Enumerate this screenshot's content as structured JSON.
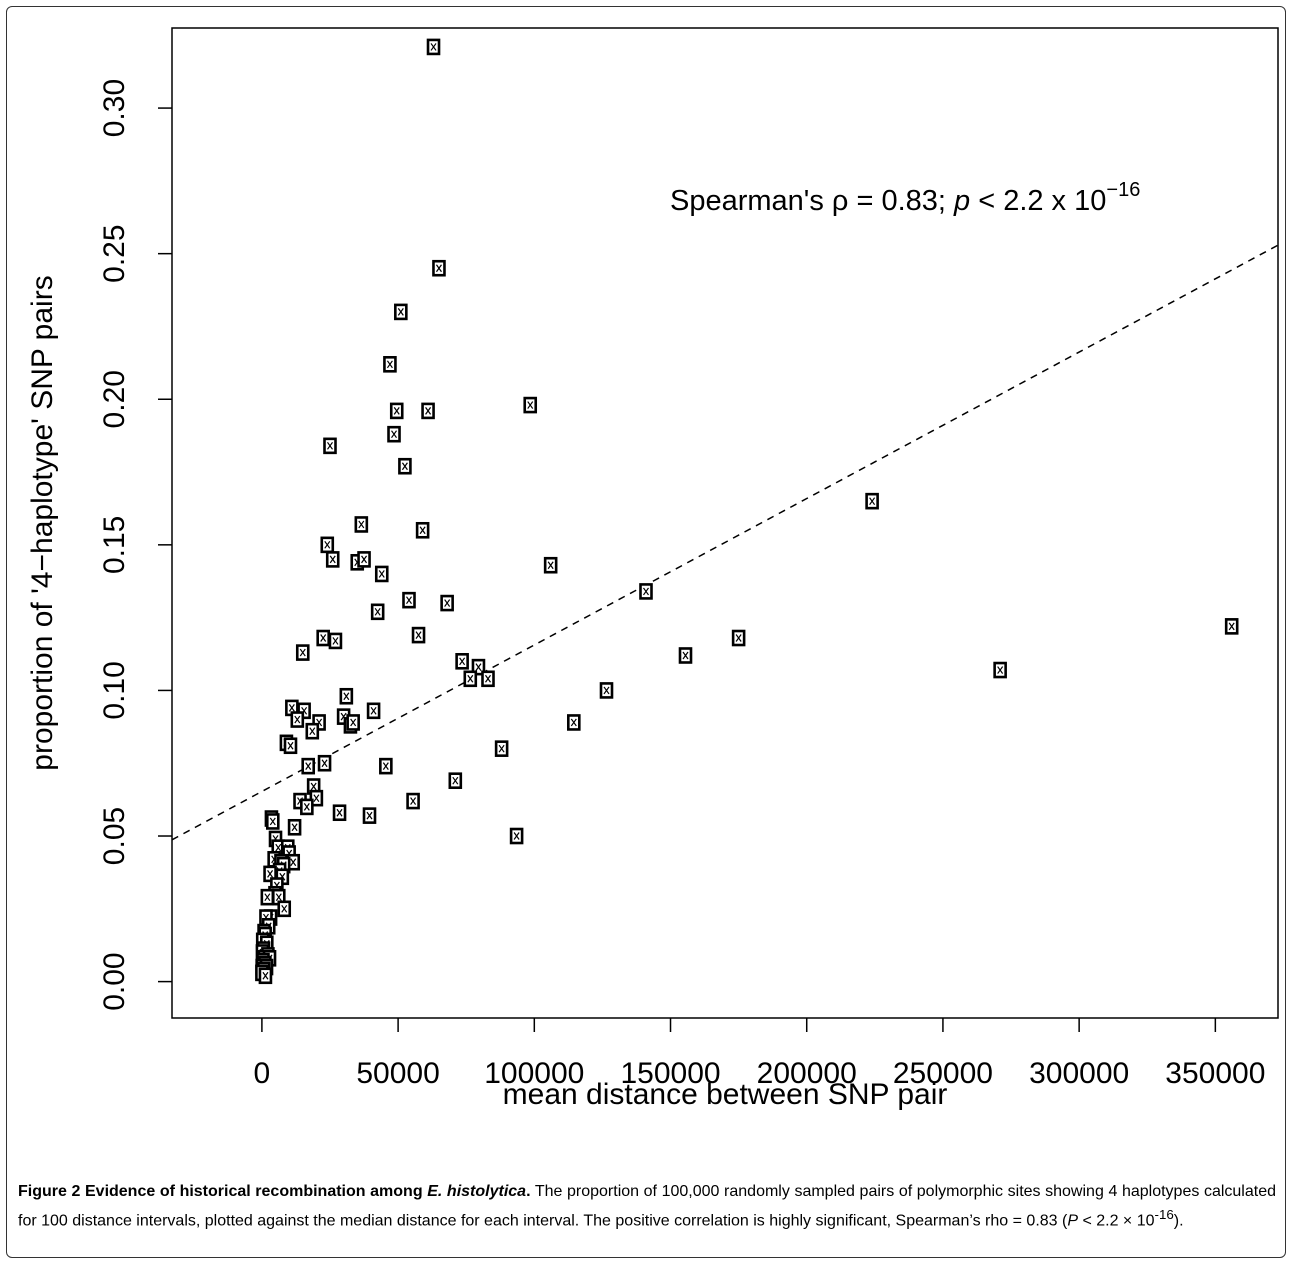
{
  "chart_data": {
    "type": "scatter",
    "xlabel": "mean distance between SNP pair",
    "ylabel": "proportion of '4−haplotype' SNP pairs",
    "xlim": [
      -33000,
      373000
    ],
    "ylim": [
      -0.0125,
      0.3275
    ],
    "x_ticks": [
      "0",
      "50000",
      "100000",
      "150000",
      "200000",
      "250000",
      "300000",
      "350000"
    ],
    "y_ticks": [
      "0.00",
      "0.05",
      "0.10",
      "0.15",
      "0.20",
      "0.25",
      "0.30"
    ],
    "grid": false,
    "annotation": {
      "prefix": "Spearman's ρ = 0.83; ",
      "p": "p",
      "mid": " < 2.2 x 10",
      "exponent": "−16"
    },
    "fit_line": {
      "intercept": 0.0653,
      "slope": 5.03e-07,
      "style": "dashed"
    },
    "points": [
      [
        63000,
        0.321
      ],
      [
        65000,
        0.245
      ],
      [
        51000,
        0.23
      ],
      [
        47000,
        0.212
      ],
      [
        98500,
        0.198
      ],
      [
        49500,
        0.196
      ],
      [
        61000,
        0.196
      ],
      [
        48500,
        0.188
      ],
      [
        25000,
        0.184
      ],
      [
        52500,
        0.177
      ],
      [
        224000,
        0.165
      ],
      [
        36500,
        0.157
      ],
      [
        59000,
        0.155
      ],
      [
        24000,
        0.15
      ],
      [
        35000,
        0.144
      ],
      [
        37500,
        0.145
      ],
      [
        26000,
        0.145
      ],
      [
        106000,
        0.143
      ],
      [
        44000,
        0.14
      ],
      [
        141000,
        0.134
      ],
      [
        54000,
        0.131
      ],
      [
        68000,
        0.13
      ],
      [
        42500,
        0.127
      ],
      [
        356000,
        0.122
      ],
      [
        57500,
        0.119
      ],
      [
        175000,
        0.118
      ],
      [
        22500,
        0.118
      ],
      [
        27000,
        0.117
      ],
      [
        15000,
        0.113
      ],
      [
        155500,
        0.112
      ],
      [
        73500,
        0.11
      ],
      [
        79500,
        0.108
      ],
      [
        271000,
        0.107
      ],
      [
        76500,
        0.104
      ],
      [
        83000,
        0.104
      ],
      [
        126500,
        0.1
      ],
      [
        31000,
        0.098
      ],
      [
        11000,
        0.094
      ],
      [
        15500,
        0.093
      ],
      [
        41000,
        0.093
      ],
      [
        30000,
        0.091
      ],
      [
        13000,
        0.09
      ],
      [
        21000,
        0.089
      ],
      [
        32500,
        0.088
      ],
      [
        33500,
        0.089
      ],
      [
        114500,
        0.089
      ],
      [
        18500,
        0.086
      ],
      [
        9000,
        0.082
      ],
      [
        10500,
        0.081
      ],
      [
        88000,
        0.08
      ],
      [
        17000,
        0.074
      ],
      [
        23000,
        0.075
      ],
      [
        45500,
        0.074
      ],
      [
        71000,
        0.069
      ],
      [
        19000,
        0.067
      ],
      [
        20000,
        0.063
      ],
      [
        14000,
        0.062
      ],
      [
        55500,
        0.062
      ],
      [
        16500,
        0.06
      ],
      [
        28500,
        0.058
      ],
      [
        39500,
        0.057
      ],
      [
        3500,
        0.056
      ],
      [
        4000,
        0.055
      ],
      [
        12000,
        0.053
      ],
      [
        93500,
        0.05
      ],
      [
        5000,
        0.049
      ],
      [
        6000,
        0.046
      ],
      [
        9500,
        0.046
      ],
      [
        10000,
        0.044
      ],
      [
        4500,
        0.042
      ],
      [
        7000,
        0.041
      ],
      [
        11500,
        0.041
      ],
      [
        8000,
        0.04
      ],
      [
        6500,
        0.038
      ],
      [
        3000,
        0.037
      ],
      [
        7500,
        0.036
      ],
      [
        5500,
        0.033
      ],
      [
        4800,
        0.03
      ],
      [
        6200,
        0.029
      ],
      [
        2000,
        0.029
      ],
      [
        8200,
        0.025
      ],
      [
        3200,
        0.022
      ],
      [
        1500,
        0.022
      ],
      [
        2500,
        0.019
      ],
      [
        800,
        0.017
      ],
      [
        1200,
        0.016
      ],
      [
        300,
        0.014
      ],
      [
        1800,
        0.013
      ],
      [
        600,
        0.011
      ],
      [
        200,
        0.01
      ],
      [
        2200,
        0.009
      ],
      [
        900,
        0.008
      ],
      [
        2800,
        0.008
      ],
      [
        400,
        0.007
      ],
      [
        1100,
        0.006
      ],
      [
        100,
        0.005
      ],
      [
        1700,
        0.005
      ],
      [
        700,
        0.004
      ],
      [
        0,
        0.003
      ],
      [
        1300,
        0.002
      ]
    ]
  },
  "caption": {
    "figure_label": "Figure 2 Evidence of historical recombination among ",
    "species": "E. histolytica",
    "title_end": ".",
    "text_1": " The proportion of 100,000 randomly sampled pairs of polymorphic sites showing 4 haplotypes calculated for 100 distance intervals, plotted against the median distance for each interval. The positive correlation is highly significant, Spearman’s rho = 0.83 (",
    "p_label": "P",
    "text_2": " < 2.2 × 10",
    "exponent": "-16",
    "text_3": ")."
  }
}
